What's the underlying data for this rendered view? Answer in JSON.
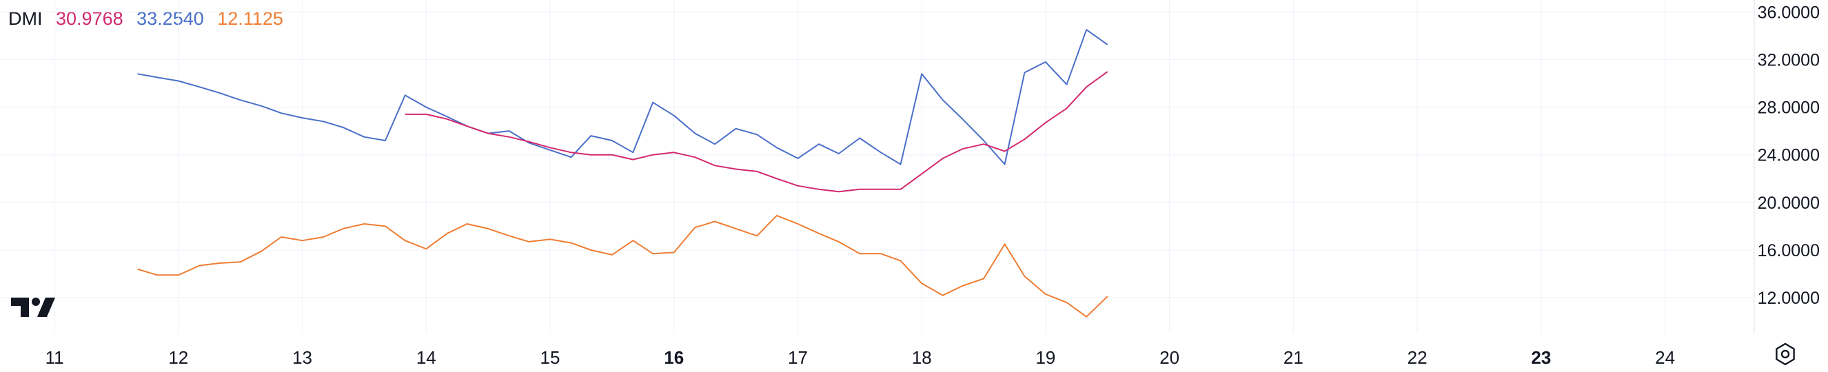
{
  "legend": {
    "name": "DMI",
    "values": [
      {
        "text": "30.9768",
        "color": "#d3296e"
      },
      {
        "text": "33.2540",
        "color": "#4a6fc9"
      },
      {
        "text": "12.1125",
        "color": "#ef7d33"
      }
    ]
  },
  "icons": {
    "logo": "tradingview-logo-icon",
    "settings": "settings-gear-icon"
  },
  "colors": {
    "grid": "#f0f3fa",
    "text": "#131722",
    "adx": "#d3296e",
    "plus_di": "#4a6fc9",
    "minus_di": "#ef7d33"
  },
  "chart_data": {
    "type": "line",
    "title": "",
    "xlabel": "",
    "ylabel": "",
    "grid": true,
    "y_position": "right",
    "ylim": [
      9.0,
      37.0
    ],
    "xlim": [
      10.56,
      24.72
    ],
    "y_ticks": [
      "36.0000",
      "32.0000",
      "28.0000",
      "24.0000",
      "20.0000",
      "16.0000",
      "12.0000"
    ],
    "x_ticks": [
      {
        "value": 11,
        "label": "11",
        "bold": false
      },
      {
        "value": 12,
        "label": "12",
        "bold": false
      },
      {
        "value": 13,
        "label": "13",
        "bold": false
      },
      {
        "value": 14,
        "label": "14",
        "bold": false
      },
      {
        "value": 15,
        "label": "15",
        "bold": false
      },
      {
        "value": 16,
        "label": "16",
        "bold": true
      },
      {
        "value": 17,
        "label": "17",
        "bold": false
      },
      {
        "value": 18,
        "label": "18",
        "bold": false
      },
      {
        "value": 19,
        "label": "19",
        "bold": false
      },
      {
        "value": 20,
        "label": "20",
        "bold": false
      },
      {
        "value": 21,
        "label": "21",
        "bold": false
      },
      {
        "value": 22,
        "label": "22",
        "bold": false
      },
      {
        "value": 23,
        "label": "23",
        "bold": true
      },
      {
        "value": 24,
        "label": "24",
        "bold": false
      }
    ],
    "series": [
      {
        "color": "#4a6fc9",
        "points": [
          [
            11.67,
            30.8
          ],
          [
            11.83,
            30.5
          ],
          [
            12.0,
            30.2
          ],
          [
            12.17,
            29.7
          ],
          [
            12.33,
            29.2
          ],
          [
            12.5,
            28.6
          ],
          [
            12.67,
            28.1
          ],
          [
            12.83,
            27.5
          ],
          [
            13.0,
            27.1
          ],
          [
            13.17,
            26.8
          ],
          [
            13.33,
            26.3
          ],
          [
            13.5,
            25.5
          ],
          [
            13.67,
            25.2
          ],
          [
            13.83,
            29.0
          ],
          [
            14.0,
            28.0
          ],
          [
            14.17,
            27.2
          ],
          [
            14.33,
            26.4
          ],
          [
            14.5,
            25.8
          ],
          [
            14.67,
            26.0
          ],
          [
            14.83,
            25.0
          ],
          [
            15.0,
            24.4
          ],
          [
            15.17,
            23.8
          ],
          [
            15.33,
            25.6
          ],
          [
            15.5,
            25.2
          ],
          [
            15.67,
            24.2
          ],
          [
            15.83,
            28.4
          ],
          [
            16.0,
            27.3
          ],
          [
            16.17,
            25.8
          ],
          [
            16.33,
            24.9
          ],
          [
            16.5,
            26.2
          ],
          [
            16.67,
            25.7
          ],
          [
            16.83,
            24.6
          ],
          [
            17.0,
            23.7
          ],
          [
            17.17,
            24.9
          ],
          [
            17.33,
            24.1
          ],
          [
            17.5,
            25.4
          ],
          [
            17.67,
            24.2
          ],
          [
            17.83,
            23.2
          ],
          [
            18.0,
            30.8
          ],
          [
            18.17,
            28.6
          ],
          [
            18.33,
            27.0
          ],
          [
            18.5,
            25.2
          ],
          [
            18.67,
            23.2
          ],
          [
            18.83,
            30.9
          ],
          [
            19.0,
            31.8
          ],
          [
            19.17,
            29.9
          ],
          [
            19.33,
            34.5
          ],
          [
            19.5,
            33.254
          ]
        ]
      },
      {
        "color": "#d3296e",
        "points": [
          [
            13.83,
            27.4
          ],
          [
            14.0,
            27.4
          ],
          [
            14.17,
            27.0
          ],
          [
            14.33,
            26.4
          ],
          [
            14.5,
            25.8
          ],
          [
            14.67,
            25.5
          ],
          [
            14.83,
            25.1
          ],
          [
            15.0,
            24.6
          ],
          [
            15.17,
            24.2
          ],
          [
            15.33,
            24.0
          ],
          [
            15.5,
            24.0
          ],
          [
            15.67,
            23.6
          ],
          [
            15.83,
            24.0
          ],
          [
            16.0,
            24.2
          ],
          [
            16.17,
            23.8
          ],
          [
            16.33,
            23.1
          ],
          [
            16.5,
            22.8
          ],
          [
            16.67,
            22.6
          ],
          [
            16.83,
            22.0
          ],
          [
            17.0,
            21.4
          ],
          [
            17.17,
            21.1
          ],
          [
            17.33,
            20.9
          ],
          [
            17.5,
            21.1
          ],
          [
            17.67,
            21.1
          ],
          [
            17.83,
            21.1
          ],
          [
            18.0,
            22.4
          ],
          [
            18.17,
            23.7
          ],
          [
            18.33,
            24.5
          ],
          [
            18.5,
            24.9
          ],
          [
            18.67,
            24.3
          ],
          [
            18.83,
            25.3
          ],
          [
            19.0,
            26.7
          ],
          [
            19.17,
            27.9
          ],
          [
            19.33,
            29.7
          ],
          [
            19.5,
            30.977
          ]
        ]
      },
      {
        "color": "#ef7d33",
        "points": [
          [
            11.67,
            14.4
          ],
          [
            11.83,
            13.9
          ],
          [
            12.0,
            13.9
          ],
          [
            12.17,
            14.7
          ],
          [
            12.33,
            14.9
          ],
          [
            12.5,
            15.0
          ],
          [
            12.67,
            15.9
          ],
          [
            12.83,
            17.1
          ],
          [
            13.0,
            16.8
          ],
          [
            13.17,
            17.1
          ],
          [
            13.33,
            17.8
          ],
          [
            13.5,
            18.2
          ],
          [
            13.67,
            18.0
          ],
          [
            13.83,
            16.8
          ],
          [
            14.0,
            16.1
          ],
          [
            14.17,
            17.4
          ],
          [
            14.33,
            18.2
          ],
          [
            14.5,
            17.8
          ],
          [
            14.67,
            17.2
          ],
          [
            14.83,
            16.7
          ],
          [
            15.0,
            16.9
          ],
          [
            15.17,
            16.6
          ],
          [
            15.33,
            16.0
          ],
          [
            15.5,
            15.6
          ],
          [
            15.67,
            16.8
          ],
          [
            15.83,
            15.7
          ],
          [
            16.0,
            15.8
          ],
          [
            16.17,
            17.9
          ],
          [
            16.33,
            18.4
          ],
          [
            16.5,
            17.8
          ],
          [
            16.67,
            17.2
          ],
          [
            16.83,
            18.9
          ],
          [
            17.0,
            18.2
          ],
          [
            17.17,
            17.4
          ],
          [
            17.33,
            16.7
          ],
          [
            17.5,
            15.7
          ],
          [
            17.67,
            15.7
          ],
          [
            17.83,
            15.1
          ],
          [
            18.0,
            13.2
          ],
          [
            18.17,
            12.2
          ],
          [
            18.33,
            13.0
          ],
          [
            18.5,
            13.6
          ],
          [
            18.67,
            16.5
          ],
          [
            18.83,
            13.8
          ],
          [
            19.0,
            12.3
          ],
          [
            19.17,
            11.6
          ],
          [
            19.33,
            10.4
          ],
          [
            19.5,
            12.1125
          ]
        ]
      }
    ]
  }
}
